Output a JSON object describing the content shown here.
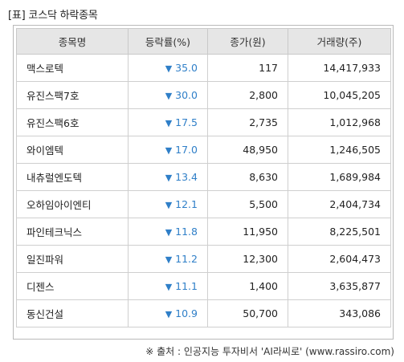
{
  "title": "[표] 코스닥 하락종목",
  "headers": [
    "종목명",
    "등락률(%)",
    "종가(원)",
    "거래량(주)"
  ],
  "rows": [
    {
      "name": "맥스로텍",
      "rate": "35.0",
      "price": "117",
      "volume": "14,417,933"
    },
    {
      "name": "유진스팩7호",
      "rate": "30.0",
      "price": "2,800",
      "volume": "10,045,205"
    },
    {
      "name": "유진스팩6호",
      "rate": "17.5",
      "price": "2,735",
      "volume": "1,012,968"
    },
    {
      "name": "와이엠텍",
      "rate": "17.0",
      "price": "48,950",
      "volume": "1,246,505"
    },
    {
      "name": "내츄럴엔도텍",
      "rate": "13.4",
      "price": "8,630",
      "volume": "1,689,984"
    },
    {
      "name": "오하임아이엔티",
      "rate": "12.1",
      "price": "5,500",
      "volume": "2,404,734"
    },
    {
      "name": "파인테크닉스",
      "rate": "11.8",
      "price": "11,950",
      "volume": "8,225,501"
    },
    {
      "name": "일진파워",
      "rate": "11.2",
      "price": "12,300",
      "volume": "2,604,473"
    },
    {
      "name": "디젠스",
      "rate": "11.1",
      "price": "1,400",
      "volume": "3,635,877"
    },
    {
      "name": "동신건설",
      "rate": "10.9",
      "price": "50,700",
      "volume": "343,086"
    }
  ],
  "down_symbol": "▼",
  "source": "※ 출처 : 인공지능 투자비서 'AI라씨로' (www.rassiro.com)",
  "colors": {
    "down": "#2f7fc8",
    "header_bg": "#e6e6e6",
    "border": "#c9c9c9"
  }
}
